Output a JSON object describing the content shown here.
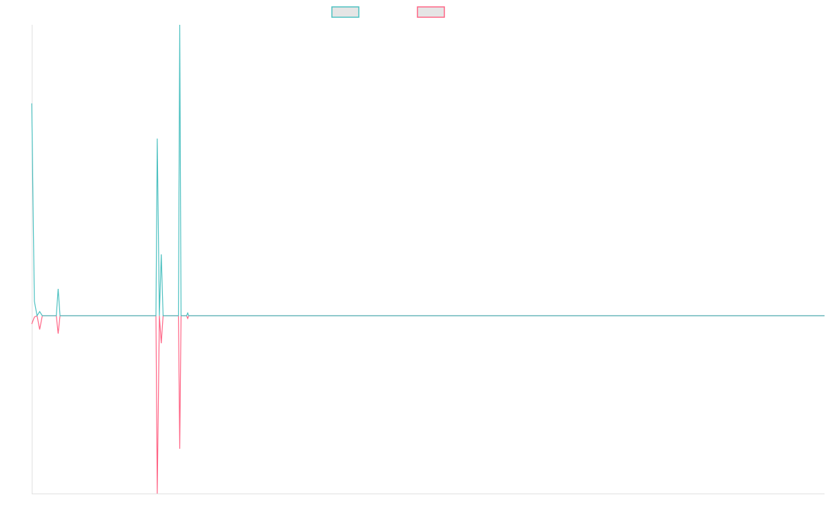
{
  "chart_data": {
    "type": "line",
    "title": "",
    "xlabel": "",
    "ylabel": "",
    "xlim": [
      0,
      300
    ],
    "ylim": [
      -258,
      422
    ],
    "grid": false,
    "legend": {
      "placement": "top-center",
      "entries": [
        "",
        ""
      ]
    },
    "series": [
      {
        "name": "",
        "color": "#4bc0c0",
        "points": [
          [
            0,
            308
          ],
          [
            1,
            21
          ],
          [
            2,
            0
          ],
          [
            3,
            6
          ],
          [
            4,
            0
          ],
          [
            9.3,
            0
          ],
          [
            10,
            39
          ],
          [
            10.7,
            0
          ],
          [
            47,
            0
          ],
          [
            47.5,
            257
          ],
          [
            48.3,
            0
          ],
          [
            49,
            89
          ],
          [
            49.7,
            0
          ],
          [
            55.5,
            0
          ],
          [
            56,
            422
          ],
          [
            56.5,
            0
          ],
          [
            58.6,
            0
          ],
          [
            59,
            4
          ],
          [
            59.4,
            0
          ],
          [
            300,
            0
          ]
        ]
      },
      {
        "name": "",
        "color": "#ff6384",
        "points": [
          [
            0,
            -12
          ],
          [
            1,
            -2
          ],
          [
            2,
            0
          ],
          [
            3,
            -20
          ],
          [
            4,
            0
          ],
          [
            9.3,
            0
          ],
          [
            10,
            -26
          ],
          [
            10.7,
            0
          ],
          [
            47,
            0
          ],
          [
            47.5,
            -258
          ],
          [
            48.3,
            0
          ],
          [
            49,
            -40
          ],
          [
            49.7,
            0
          ],
          [
            55.5,
            0
          ],
          [
            56,
            -193
          ],
          [
            56.5,
            0
          ],
          [
            58.6,
            0
          ],
          [
            59,
            -4
          ],
          [
            59.4,
            0
          ],
          [
            300,
            0
          ]
        ]
      }
    ]
  }
}
